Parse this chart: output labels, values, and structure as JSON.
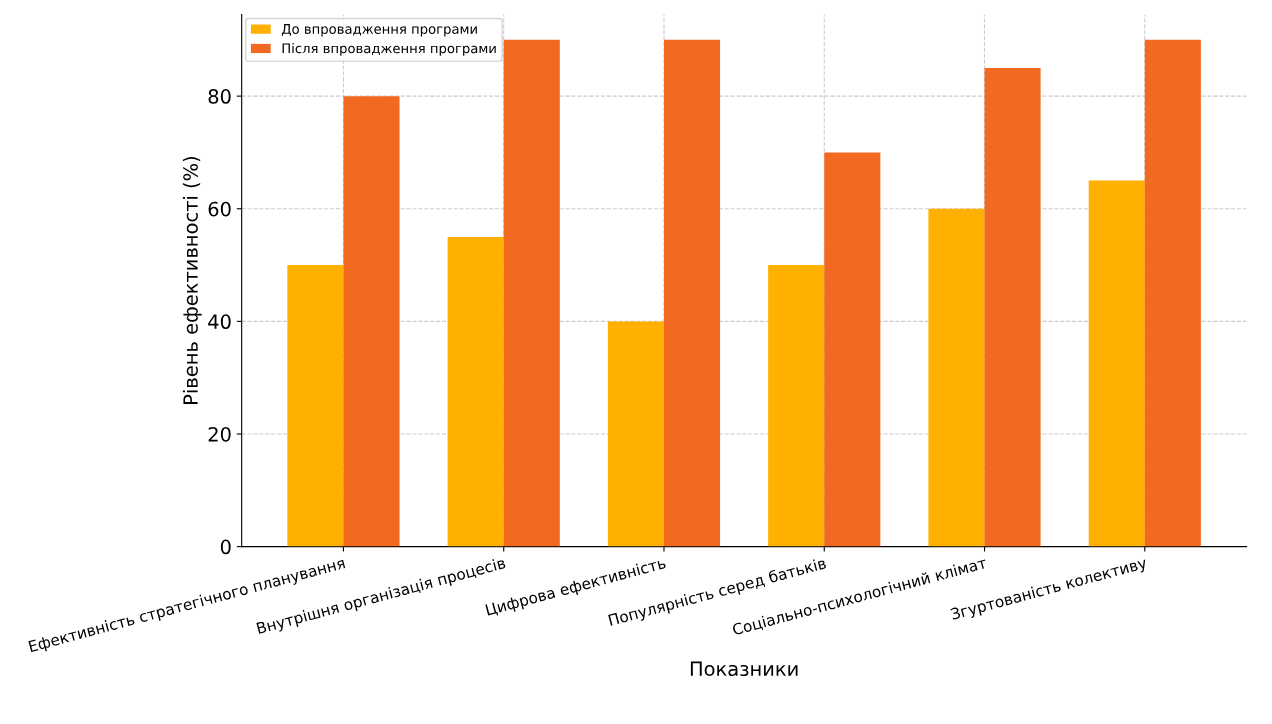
{
  "chart_data": {
    "type": "bar",
    "xlabel": "Показники",
    "ylabel": "Рівень ефективності (%)",
    "categories": [
      "Ефективність стратегічного планування",
      "Внутрішня організація процесів",
      "Цифрова ефективність",
      "Популярність серед батьків",
      "Соціально-психологічний клімат",
      "Згуртованість колективу"
    ],
    "series": [
      {
        "name": "До впровадження програми",
        "color": "#ffb000",
        "values": [
          50,
          55,
          40,
          50,
          60,
          65
        ]
      },
      {
        "name": "Після впровадження програми",
        "color": "#f26a21",
        "values": [
          80,
          90,
          90,
          70,
          85,
          90
        ]
      }
    ],
    "ylim": [
      0,
      94.5
    ],
    "yticks": [
      0,
      20,
      40,
      60,
      80
    ],
    "grid": true,
    "legend": "top left"
  }
}
